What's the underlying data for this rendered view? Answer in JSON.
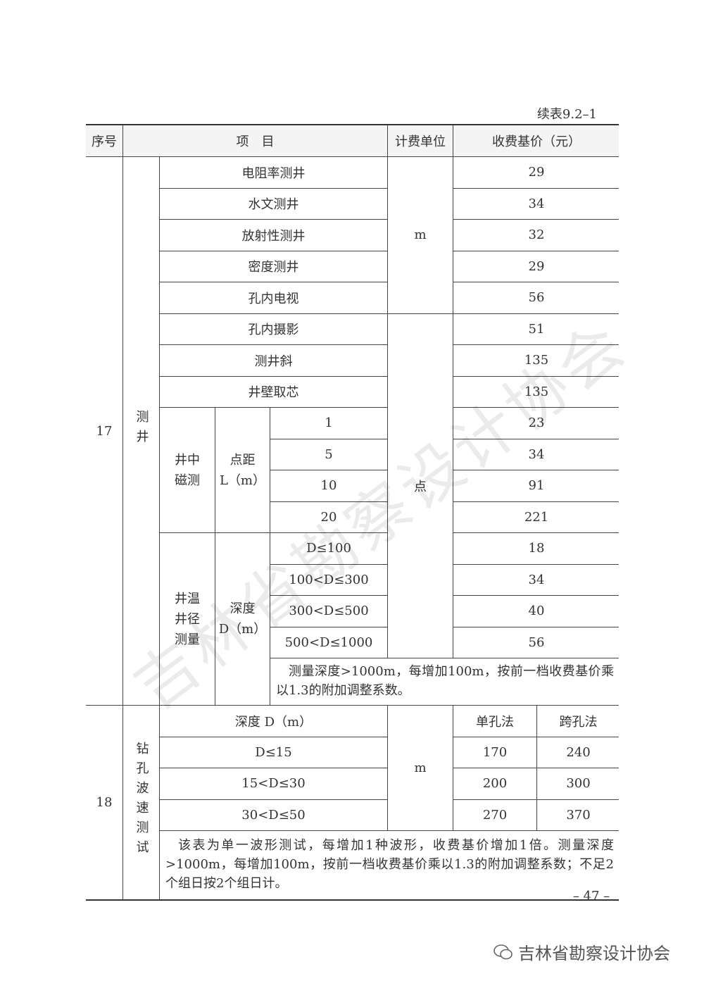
{
  "caption": "续表9.2–1",
  "table": {
    "header": [
      "序号",
      "项　目",
      "计费单位",
      "收费基价（元）"
    ],
    "g17": {
      "no": "17",
      "name": "测井",
      "unit_m": "m",
      "unit_pt": "点",
      "items": [
        {
          "name": "电阻率测井",
          "price": "29"
        },
        {
          "name": "水文测井",
          "price": "34"
        },
        {
          "name": "放射性测井",
          "price": "32"
        },
        {
          "name": "密度测井",
          "price": "29"
        },
        {
          "name": "孔内电视",
          "price": "56"
        },
        {
          "name": "孔内摄影",
          "price": "51"
        },
        {
          "name": "测井斜",
          "price": "135"
        },
        {
          "name": "井壁取芯",
          "price": "135"
        }
      ],
      "magnetic": {
        "label": "井中\n磁测",
        "param": "点距\nL（m）",
        "rows": [
          {
            "value": "1",
            "price": "23"
          },
          {
            "value": "5",
            "price": "34"
          },
          {
            "value": "10",
            "price": "91"
          },
          {
            "value": "20",
            "price": "221"
          }
        ]
      },
      "temp": {
        "label": "井温\n井径\n测量",
        "param": "深度\nD（m）",
        "rows": [
          {
            "value": "D≤100",
            "price": "18"
          },
          {
            "value": "100<D≤300",
            "price": "34"
          },
          {
            "value": "300<D≤500",
            "price": "40"
          },
          {
            "value": "500<D≤1000",
            "price": "56"
          }
        ]
      },
      "note": "测量深度>1000m，每增加100m，按前一档收费基价乘以1.3的附加调整系数。"
    },
    "g18": {
      "no": "18",
      "name": "钻孔波速测试",
      "unit": "m",
      "head": [
        "深度 D（m）",
        "单孔法",
        "跨孔法"
      ],
      "rows": [
        {
          "depth": "D≤15",
          "single": "170",
          "cross": "240"
        },
        {
          "depth": "15<D≤30",
          "single": "200",
          "cross": "300"
        },
        {
          "depth": "30<D≤50",
          "single": "270",
          "cross": "370"
        }
      ],
      "note": "该表为单一波形测试，每增加1种波形，收费基价增加1倍。测量深度>1000m，每增加100m，按前一档收费基价乘以1.3的附加调整系数；不足2个组日按2个组日计。"
    }
  },
  "page_number": "– 47 –",
  "watermark": "吉林省勘察设计协会",
  "footer": "吉林省勘察设计协会"
}
